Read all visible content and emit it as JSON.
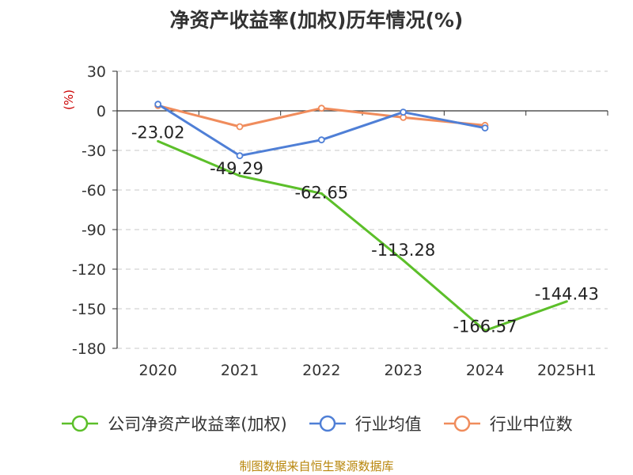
{
  "chart_data": {
    "type": "line",
    "title": "净资产收益率(加权)历年情况(%)",
    "y_unit": "(%)",
    "categories": [
      "2020",
      "2021",
      "2022",
      "2023",
      "2024",
      "2025H1"
    ],
    "ylim": [
      -180,
      30
    ],
    "yticks": [
      30,
      0,
      -30,
      -60,
      -90,
      -120,
      -150,
      -180
    ],
    "grid": true,
    "legend_position": "bottom",
    "series": [
      {
        "name": "公司净资产收益率(加权)",
        "color": "#5cbf2a",
        "values": [
          -23.02,
          -49.29,
          -62.65,
          -113.28,
          -166.57,
          -144.43
        ],
        "labels": [
          "-23.02",
          "-49.29",
          "-62.65",
          "-113.28",
          "-166.57",
          "-144.43"
        ]
      },
      {
        "name": "行业均值",
        "color": "#4f7fd6",
        "values": [
          5,
          -34,
          -22,
          -1,
          -13,
          null
        ]
      },
      {
        "name": "行业中位数",
        "color": "#f08c5c",
        "values": [
          4,
          -12,
          2,
          -5,
          -11,
          null
        ]
      }
    ],
    "source": "制图数据来自恒生聚源数据库"
  }
}
